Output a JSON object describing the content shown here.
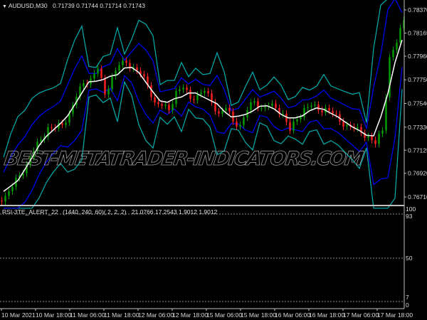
{
  "main_header": {
    "symbol": "AUDUSD,M30",
    "values": "0.71739 0.71744 0.71714 0.71743",
    "arrow_icon": "triangle-down-icon"
  },
  "sub_header": {
    "indicator": "RSI-3TE_ALERT_22",
    "params": "(1440, 240, 60)( 2, 2, 2)",
    "values": "21.0766 17.2543 1.9012 1.9012"
  },
  "watermark": "BEST-METATRADER-INDICATORS.COM",
  "colors": {
    "background": "#000000",
    "bull": "#00a000",
    "bear": "#ff2020",
    "ma": "#ffffff",
    "inner_band": "#0000ff",
    "outer_band": "#00b0b0",
    "axis": "#c0c0c0"
  },
  "chart_data": {
    "type": "line",
    "price_axis_labels": [
      "0.78370",
      "0.78165",
      "0.77960",
      "0.77750",
      "0.77540",
      "0.77330",
      "0.77125",
      "0.76920",
      "0.76710"
    ],
    "ylim": [
      0.7671,
      0.7837
    ],
    "time_axis_labels": [
      "10 Mar 2021",
      "10 Mar 18:00",
      "11 Mar 06:00",
      "11 Mar 18:00",
      "12 Mar 06:00",
      "12 Mar 18:00",
      "15 Mar 06:00",
      "15 Mar 18:00",
      "16 Mar 06:00",
      "16 Mar 18:00",
      "17 Mar 06:00",
      "17 Mar 18:00"
    ],
    "closes": [
      0.7672,
      0.768,
      0.769,
      0.77,
      0.7712,
      0.7722,
      0.7733,
      0.7732,
      0.7735,
      0.7745,
      0.776,
      0.7772,
      0.7776,
      0.7785,
      0.7762,
      0.7778,
      0.7788,
      0.779,
      0.7786,
      0.778,
      0.777,
      0.7755,
      0.7752,
      0.7748,
      0.7765,
      0.7768,
      0.7758,
      0.7762,
      0.7765,
      0.7755,
      0.7745,
      0.775,
      0.7738,
      0.7735,
      0.7748,
      0.7756,
      0.775,
      0.7752,
      0.775,
      0.7745,
      0.773,
      0.774,
      0.775,
      0.7752,
      0.7748,
      0.775,
      0.7745,
      0.7738,
      0.7735,
      0.7732,
      0.7728,
      0.7725,
      0.7718,
      0.773,
      0.7795,
      0.7808,
      0.7828
    ],
    "sub_axis_labels": [
      "100",
      "93",
      "50",
      "7",
      "0"
    ]
  }
}
